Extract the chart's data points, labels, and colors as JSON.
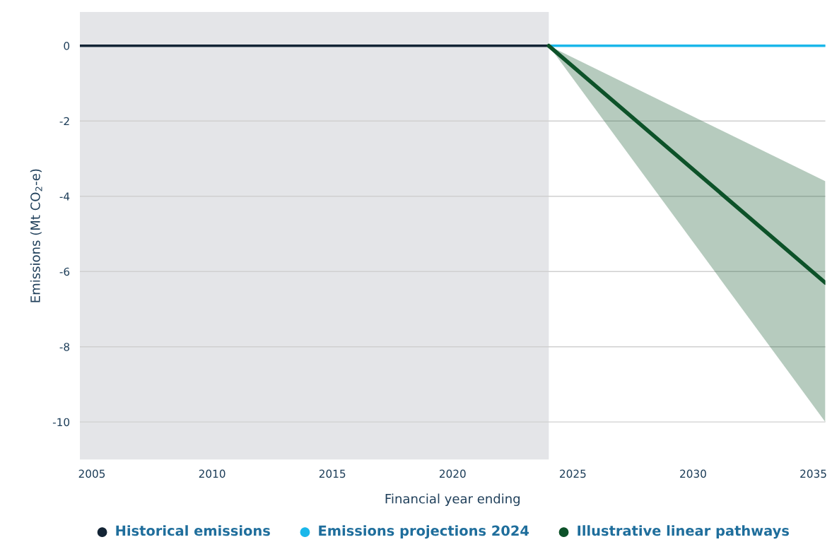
{
  "chart_data": {
    "type": "line",
    "xlabel": "Financial year ending",
    "ylabel": "Emissions (Mt CO$_{2}$-e)",
    "xlim": [
      2004.5,
      2035.5
    ],
    "xticks": [
      2005,
      2010,
      2015,
      2020,
      2025,
      2030,
      2035
    ],
    "ylim": [
      -11,
      0.9
    ],
    "yticks": [
      0,
      -2,
      -4,
      -6,
      -8,
      -10
    ],
    "grid": "y",
    "legend": "bottom",
    "marker": "none",
    "line_style": "solid",
    "bands": [
      {
        "axis": "x",
        "from": 2004.5,
        "to": 2024,
        "color": "#e4e5e8"
      }
    ],
    "series": [
      {
        "name": "Historical emissions",
        "color": "#132435",
        "x": [
          2004.5,
          2024
        ],
        "values": [
          0,
          0
        ]
      },
      {
        "name": "Emissions projections 2024",
        "color": "#1ab7ea",
        "x": [
          2024,
          2035.5
        ],
        "values": [
          0,
          0
        ]
      },
      {
        "name": "Illustrative linear pathways",
        "color": "#0d5229",
        "x": [
          2024,
          2035.5
        ],
        "values": [
          0,
          -6.3
        ],
        "lower": [
          0,
          -10
        ],
        "upper": [
          0,
          -3.6
        ]
      }
    ]
  }
}
